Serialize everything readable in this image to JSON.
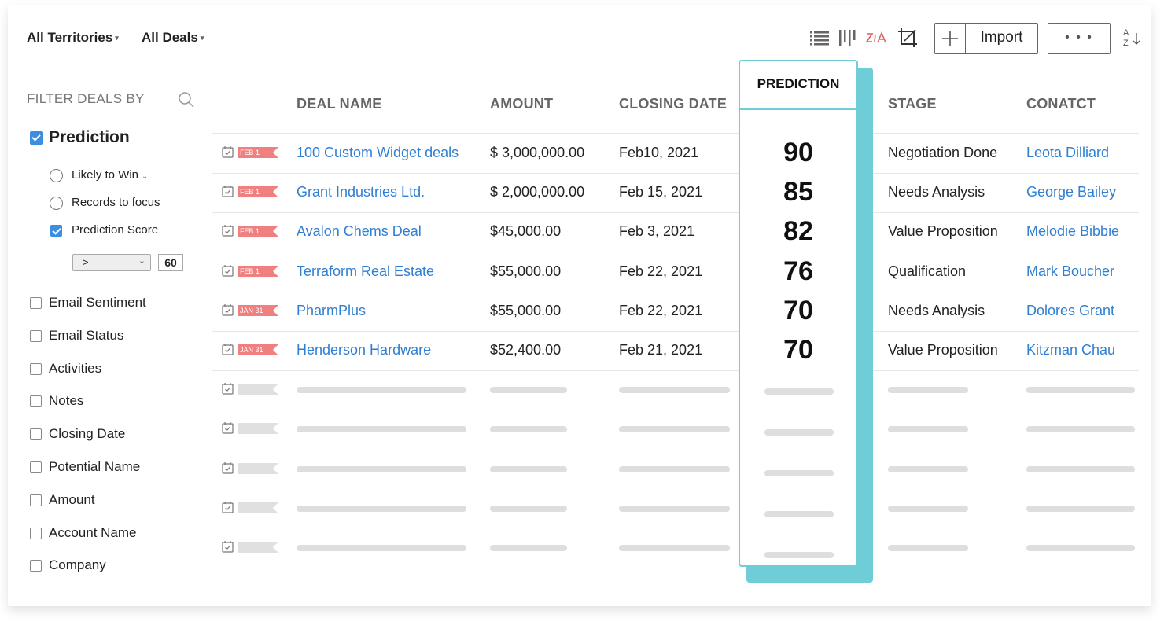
{
  "toolbar": {
    "territory_dropdown": "All Territories",
    "deals_dropdown": "All Deals",
    "import_label": "Import",
    "more_label": "• • •",
    "sort_top": "A",
    "sort_bottom": "Z"
  },
  "sidebar": {
    "title": "FILTER DEALS BY",
    "prediction_label": "Prediction",
    "options": {
      "likely_to_win": "Likely to Win",
      "records_to_focus": "Records to focus",
      "prediction_score": "Prediction Score"
    },
    "score_operator": ">",
    "score_value": "60",
    "filters": [
      "Email Sentiment",
      "Email Status",
      "Activities",
      "Notes",
      "Closing Date",
      "Potential Name",
      "Amount",
      "Account Name",
      "Company"
    ]
  },
  "table": {
    "headers": {
      "deal_name": "DEAL NAME",
      "amount": "AMOUNT",
      "closing_date": "CLOSING DATE",
      "prediction": "PREDICTION",
      "stage": "STAGE",
      "contact": "CONATCT"
    },
    "rows": [
      {
        "tag": "FEB 1",
        "deal": "100 Custom Widget deals",
        "amount": "$ 3,000,000.00",
        "date": "Feb10, 2021",
        "prediction": "90",
        "stage": "Negotiation Done",
        "contact": "Leota Dilliard"
      },
      {
        "tag": "FEB 1",
        "deal": "Grant Industries Ltd.",
        "amount": "$ 2,000,000.00",
        "date": "Feb 15, 2021",
        "prediction": "85",
        "stage": "Needs Analysis",
        "contact": "George Bailey"
      },
      {
        "tag": "FEB 1",
        "deal": "Avalon Chems Deal",
        "amount": "$45,000.00",
        "date": "Feb 3, 2021",
        "prediction": "82",
        "stage": "Value Proposition",
        "contact": "Melodie Bibbie"
      },
      {
        "tag": "FEB 1",
        "deal": "Terraform Real Estate",
        "amount": "$55,000.00",
        "date": "Feb 22, 2021",
        "prediction": "76",
        "stage": "Qualification",
        "contact": "Mark Boucher"
      },
      {
        "tag": "JAN 31",
        "deal": "PharmPlus",
        "amount": "$55,000.00",
        "date": "Feb 22, 2021",
        "prediction": "70",
        "stage": "Needs Analysis",
        "contact": "Dolores Grant"
      },
      {
        "tag": "JAN 31",
        "deal": "Henderson Hardware",
        "amount": "$52,400.00",
        "date": "Feb 21, 2021",
        "prediction": "70",
        "stage": "Value Proposition",
        "contact": "Kitzman Chau"
      }
    ]
  },
  "colors": {
    "accent_teal": "#6fcdd8",
    "link_blue": "#2f7fd2",
    "tag_red": "#f07f7f",
    "checkbox_blue": "#3b8ee0"
  },
  "icons": [
    "list-view-icon",
    "kanban-view-icon",
    "zia-icon",
    "crop-icon",
    "plus-icon",
    "sort-az-icon",
    "search-icon",
    "calendar-icon"
  ]
}
